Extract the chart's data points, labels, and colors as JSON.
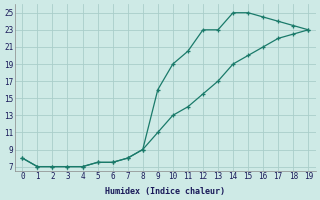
{
  "curve1_x": [
    0,
    1,
    2,
    3,
    4,
    5,
    6,
    7,
    8,
    9,
    10,
    11,
    12,
    13,
    14,
    15,
    16,
    17,
    18,
    19
  ],
  "curve1_y": [
    8,
    7,
    7,
    7,
    7,
    7.5,
    7.5,
    8,
    9,
    16,
    19,
    20.5,
    23,
    23,
    25,
    25,
    24.5,
    24,
    23.5,
    23
  ],
  "curve2_x": [
    0,
    1,
    2,
    3,
    4,
    5,
    6,
    7,
    8,
    9,
    10,
    11,
    12,
    13,
    14,
    15,
    16,
    17,
    18,
    19
  ],
  "curve2_y": [
    8,
    7,
    7,
    7,
    7,
    7.5,
    7.5,
    8,
    9,
    11,
    13,
    14,
    15.5,
    17,
    19,
    20,
    21,
    22,
    22.5,
    23
  ],
  "line_color": "#1a7a6a",
  "bg_color": "#ceeae6",
  "grid_color": "#aaceca",
  "xlabel": "Humidex (Indice chaleur)",
  "xlim": [
    -0.5,
    19.5
  ],
  "ylim": [
    6.5,
    26
  ],
  "xticks": [
    0,
    1,
    2,
    3,
    4,
    5,
    6,
    7,
    8,
    9,
    10,
    11,
    12,
    13,
    14,
    15,
    16,
    17,
    18,
    19
  ],
  "yticks": [
    7,
    9,
    11,
    13,
    15,
    17,
    19,
    21,
    23,
    25
  ]
}
